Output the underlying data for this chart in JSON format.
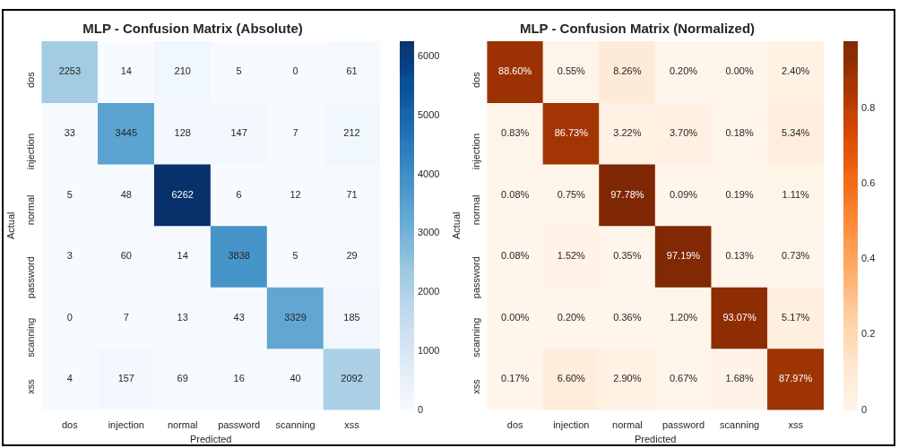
{
  "chart_data": [
    {
      "type": "heatmap",
      "title": "MLP - Confusion Matrix (Absolute)",
      "xlabel": "Predicted",
      "ylabel": "Actual",
      "categories": [
        "dos",
        "injection",
        "normal",
        "password",
        "scanning",
        "xss"
      ],
      "y_categories": [
        "dos",
        "injection",
        "normal",
        "password",
        "scanning",
        "xss"
      ],
      "cells": [
        [
          2253,
          14,
          210,
          5,
          0,
          61
        ],
        [
          33,
          3445,
          128,
          147,
          7,
          212
        ],
        [
          5,
          48,
          6262,
          6,
          12,
          71
        ],
        [
          3,
          60,
          14,
          3838,
          5,
          29
        ],
        [
          0,
          7,
          13,
          43,
          3329,
          185
        ],
        [
          4,
          157,
          69,
          16,
          40,
          2092
        ]
      ],
      "data_labels": true,
      "colors": [
        "#f7fbff",
        "#deebf7",
        "#c6dbef",
        "#9ecae1",
        "#6baed6",
        "#4292c6",
        "#2171b5",
        "#08519c",
        "#08306b"
      ],
      "clim": [
        0,
        6262
      ],
      "cticks": [
        0,
        1000,
        2000,
        3000,
        4000,
        5000,
        6000
      ]
    },
    {
      "type": "heatmap",
      "title": "MLP - Confusion Matrix (Normalized)",
      "xlabel": "Predicted",
      "ylabel": "Actual",
      "categories": [
        "dos",
        "injection",
        "normal",
        "password",
        "scanning",
        "xss"
      ],
      "y_categories": [
        "dos",
        "injection",
        "normal",
        "password",
        "scanning",
        "xss"
      ],
      "cells": [
        [
          0.886,
          0.0055,
          0.0826,
          0.002,
          0,
          0.024
        ],
        [
          0.0083,
          0.8673,
          0.0322,
          0.037,
          0.0018,
          0.0534
        ],
        [
          0.0008,
          0.0075,
          0.9778,
          0.0009,
          0.0019,
          0.0111
        ],
        [
          0.0008,
          0.0152,
          0.0035,
          0.9719,
          0.0013,
          0.0073
        ],
        [
          0,
          0.002,
          0.0036,
          0.012,
          0.9307,
          0.0517
        ],
        [
          0.0017,
          0.066,
          0.029,
          0.0067,
          0.0168,
          0.8797
        ]
      ],
      "cell_labels": [
        [
          "88.60%",
          "0.55%",
          "8.26%",
          "0.20%",
          "0.00%",
          "2.40%"
        ],
        [
          "0.83%",
          "86.73%",
          "3.22%",
          "3.70%",
          "0.18%",
          "5.34%"
        ],
        [
          "0.08%",
          "0.75%",
          "97.78%",
          "0.09%",
          "0.19%",
          "1.11%"
        ],
        [
          "0.08%",
          "1.52%",
          "0.35%",
          "97.19%",
          "0.13%",
          "0.73%"
        ],
        [
          "0.00%",
          "0.20%",
          "0.36%",
          "1.20%",
          "93.07%",
          "5.17%"
        ],
        [
          "0.17%",
          "6.60%",
          "2.90%",
          "0.67%",
          "1.68%",
          "87.97%"
        ]
      ],
      "colors": [
        "#fff5eb",
        "#fee6ce",
        "#fdd0a2",
        "#fdae6b",
        "#fd8d3c",
        "#f16913",
        "#d94801",
        "#a63603",
        "#7f2704"
      ],
      "clim": [
        0,
        0.9778
      ],
      "cticks": [
        0,
        0.2,
        0.4,
        0.6,
        0.8
      ]
    }
  ]
}
